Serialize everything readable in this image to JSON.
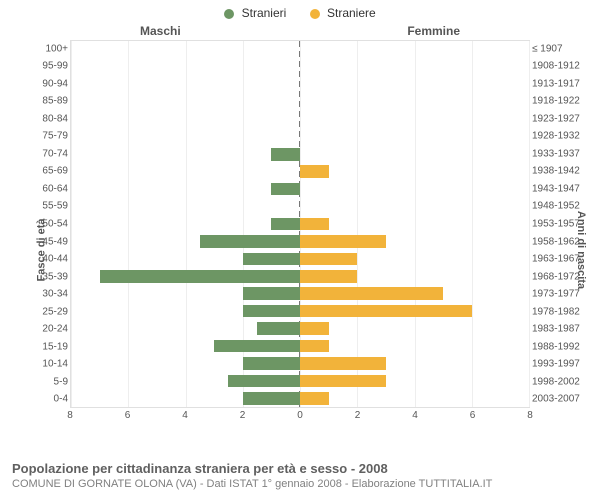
{
  "legend": {
    "male_label": "Stranieri",
    "female_label": "Straniere",
    "male_color": "#6d9664",
    "female_color": "#f2b33a"
  },
  "column_headers": {
    "left": "Maschi",
    "right": "Femmine"
  },
  "axis_titles": {
    "left": "Fasce di età",
    "right": "Anni di nascita"
  },
  "chart": {
    "type": "population-pyramid",
    "x_max": 8,
    "x_ticks": [
      8,
      6,
      4,
      2,
      0,
      2,
      4,
      6,
      8
    ],
    "background_color": "#ffffff",
    "grid_color": "#eeeeee",
    "border_color": "#e0e0e0",
    "center_line_color": "#777777",
    "rows": [
      {
        "age": "100+",
        "birth": "≤ 1907",
        "m": 0,
        "f": 0
      },
      {
        "age": "95-99",
        "birth": "1908-1912",
        "m": 0,
        "f": 0
      },
      {
        "age": "90-94",
        "birth": "1913-1917",
        "m": 0,
        "f": 0
      },
      {
        "age": "85-89",
        "birth": "1918-1922",
        "m": 0,
        "f": 0
      },
      {
        "age": "80-84",
        "birth": "1923-1927",
        "m": 0,
        "f": 0
      },
      {
        "age": "75-79",
        "birth": "1928-1932",
        "m": 0,
        "f": 0
      },
      {
        "age": "70-74",
        "birth": "1933-1937",
        "m": 1,
        "f": 0
      },
      {
        "age": "65-69",
        "birth": "1938-1942",
        "m": 0,
        "f": 1
      },
      {
        "age": "60-64",
        "birth": "1943-1947",
        "m": 1,
        "f": 0
      },
      {
        "age": "55-59",
        "birth": "1948-1952",
        "m": 0,
        "f": 0
      },
      {
        "age": "50-54",
        "birth": "1953-1957",
        "m": 1,
        "f": 1
      },
      {
        "age": "45-49",
        "birth": "1958-1962",
        "m": 3.5,
        "f": 3
      },
      {
        "age": "40-44",
        "birth": "1963-1967",
        "m": 2,
        "f": 2
      },
      {
        "age": "35-39",
        "birth": "1968-1972",
        "m": 7,
        "f": 2
      },
      {
        "age": "30-34",
        "birth": "1973-1977",
        "m": 2,
        "f": 5
      },
      {
        "age": "25-29",
        "birth": "1978-1982",
        "m": 2,
        "f": 6
      },
      {
        "age": "20-24",
        "birth": "1983-1987",
        "m": 1.5,
        "f": 1
      },
      {
        "age": "15-19",
        "birth": "1988-1992",
        "m": 3,
        "f": 1
      },
      {
        "age": "10-14",
        "birth": "1993-1997",
        "m": 2,
        "f": 3
      },
      {
        "age": "5-9",
        "birth": "1998-2002",
        "m": 2.5,
        "f": 3
      },
      {
        "age": "0-4",
        "birth": "2003-2007",
        "m": 2,
        "f": 1
      }
    ]
  },
  "footer": {
    "title": "Popolazione per cittadinanza straniera per età e sesso - 2008",
    "subtitle": "COMUNE DI GORNATE OLONA (VA) - Dati ISTAT 1° gennaio 2008 - Elaborazione TUTTITALIA.IT"
  }
}
